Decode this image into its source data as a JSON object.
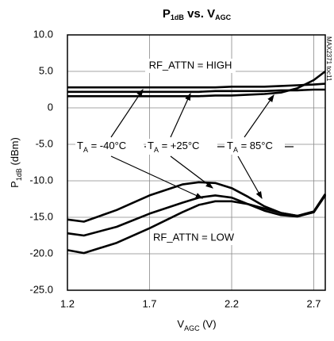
{
  "chart_data": {
    "type": "line",
    "title": [
      "P",
      "1dB",
      " vs. V",
      "AGC"
    ],
    "x_label": [
      "V",
      "AGC",
      " (V)"
    ],
    "y_label": [
      "P",
      "1dB",
      " (dBm)"
    ],
    "side_note": "MAX2371 toc11",
    "annotations": [
      [
        "T",
        "A",
        " = -40°C"
      ],
      [
        "T",
        "A",
        " = +25°C"
      ],
      [
        "T",
        "A",
        " = 85°C"
      ],
      "RF_ATTN = HIGH",
      "RF_ATTN = LOW"
    ],
    "x": [
      1.2,
      1.3,
      1.5,
      1.7,
      1.9,
      2.0,
      2.1,
      2.2,
      2.3,
      2.4,
      2.5,
      2.6,
      2.7,
      2.77
    ],
    "series": [
      {
        "color": "#000000",
        "values": [
          2.8,
          2.8,
          2.8,
          2.8,
          2.8,
          2.8,
          2.8,
          2.9,
          2.9,
          2.9,
          3.0,
          3.1,
          3.2,
          3.3
        ]
      },
      {
        "color": "#000000",
        "values": [
          2.2,
          2.2,
          2.2,
          2.2,
          2.2,
          2.2,
          2.3,
          2.3,
          2.3,
          2.3,
          2.4,
          2.4,
          2.5,
          2.5
        ]
      },
      {
        "color": "#000000",
        "values": [
          1.6,
          1.6,
          1.6,
          1.6,
          1.6,
          1.6,
          1.7,
          1.7,
          1.8,
          1.9,
          2.1,
          2.7,
          3.8,
          5.0
        ]
      },
      {
        "color": "#000000",
        "values": [
          -15.3,
          -15.6,
          -14,
          -12,
          -10.5,
          -10.2,
          -10.3,
          -11,
          -12.2,
          -13.5,
          -14.4,
          -14.8,
          -14.2,
          -11.8
        ]
      },
      {
        "color": "#000000",
        "values": [
          -17.2,
          -17.5,
          -16.3,
          -14.5,
          -13,
          -12.3,
          -12,
          -12.3,
          -13.2,
          -14.1,
          -14.7,
          -14.9,
          -14.3,
          -11.9
        ]
      },
      {
        "color": "#000000",
        "values": [
          -19.5,
          -19.9,
          -18.5,
          -16.5,
          -14.3,
          -13.3,
          -12.8,
          -12.8,
          -13.2,
          -13.8,
          -14.4,
          -14.8,
          -14.3,
          -12.0
        ]
      }
    ],
    "xlim": [
      1.2,
      2.77
    ],
    "xticks": [
      1.2,
      1.7,
      2.2,
      2.7
    ],
    "ylim": [
      -25,
      10
    ],
    "yticks": [
      {
        "value": -25,
        "label": "-25.0"
      },
      {
        "value": -20,
        "label": "-20.0"
      },
      {
        "value": -15,
        "label": "-15.0"
      },
      {
        "value": -10,
        "label": "-10.0"
      },
      {
        "value": -5,
        "label": "-5.0"
      },
      0,
      {
        "value": 5,
        "label": "5.0"
      },
      {
        "value": 10,
        "label": "10.0"
      }
    ],
    "grid": true
  }
}
